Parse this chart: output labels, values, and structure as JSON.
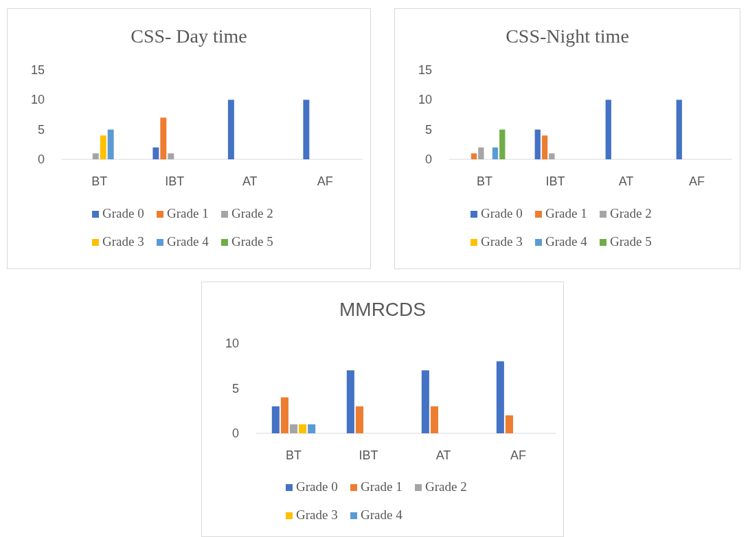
{
  "chart_data": [
    {
      "type": "bar",
      "title": "CSS- Day time",
      "categories": [
        "BT",
        "IBT",
        "AT",
        "AF"
      ],
      "series": [
        {
          "name": "Grade 0",
          "color": "#4472c4",
          "values": [
            0,
            2,
            10,
            10
          ]
        },
        {
          "name": "Grade 1",
          "color": "#ed7d31",
          "values": [
            0,
            7,
            0,
            0
          ]
        },
        {
          "name": "Grade 2",
          "color": "#a5a5a5",
          "values": [
            1,
            1,
            0,
            0
          ]
        },
        {
          "name": "Grade 3",
          "color": "#ffc000",
          "values": [
            4,
            0,
            0,
            0
          ]
        },
        {
          "name": "Grade 4",
          "color": "#5b9bd5",
          "values": [
            5,
            0,
            0,
            0
          ]
        },
        {
          "name": "Grade 5",
          "color": "#70ad47",
          "values": [
            0,
            0,
            0,
            0
          ]
        }
      ],
      "ylim": [
        0,
        15
      ],
      "yticks": [
        0,
        5,
        10,
        15
      ],
      "legend": "bottom"
    },
    {
      "type": "bar",
      "title": "CSS-Night time",
      "categories": [
        "BT",
        "IBT",
        "AT",
        "AF"
      ],
      "series": [
        {
          "name": "Grade 0",
          "color": "#4472c4",
          "values": [
            0,
            5,
            10,
            10
          ]
        },
        {
          "name": "Grade 1",
          "color": "#ed7d31",
          "values": [
            1,
            4,
            0,
            0
          ]
        },
        {
          "name": "Grade 2",
          "color": "#a5a5a5",
          "values": [
            2,
            1,
            0,
            0
          ]
        },
        {
          "name": "Grade 3",
          "color": "#ffc000",
          "values": [
            0,
            0,
            0,
            0
          ]
        },
        {
          "name": "Grade 4",
          "color": "#5b9bd5",
          "values": [
            2,
            0,
            0,
            0
          ]
        },
        {
          "name": "Grade 5",
          "color": "#70ad47",
          "values": [
            5,
            0,
            0,
            0
          ]
        }
      ],
      "ylim": [
        0,
        15
      ],
      "yticks": [
        0,
        5,
        10,
        15
      ],
      "legend": "bottom"
    },
    {
      "type": "bar",
      "title": "MMRCDS",
      "categories": [
        "BT",
        "IBT",
        "AT",
        "AF"
      ],
      "series": [
        {
          "name": "Grade 0",
          "color": "#4472c4",
          "values": [
            3,
            7,
            7,
            8
          ]
        },
        {
          "name": "Grade 1",
          "color": "#ed7d31",
          "values": [
            4,
            3,
            3,
            2
          ]
        },
        {
          "name": "Grade 2",
          "color": "#a5a5a5",
          "values": [
            1,
            0,
            0,
            0
          ]
        },
        {
          "name": "Grade 3",
          "color": "#ffc000",
          "values": [
            1,
            0,
            0,
            0
          ]
        },
        {
          "name": "Grade 4",
          "color": "#5b9bd5",
          "values": [
            1,
            0,
            0,
            0
          ]
        }
      ],
      "ylim": [
        0,
        10
      ],
      "yticks": [
        0,
        5,
        10
      ],
      "legend": "bottom"
    }
  ]
}
